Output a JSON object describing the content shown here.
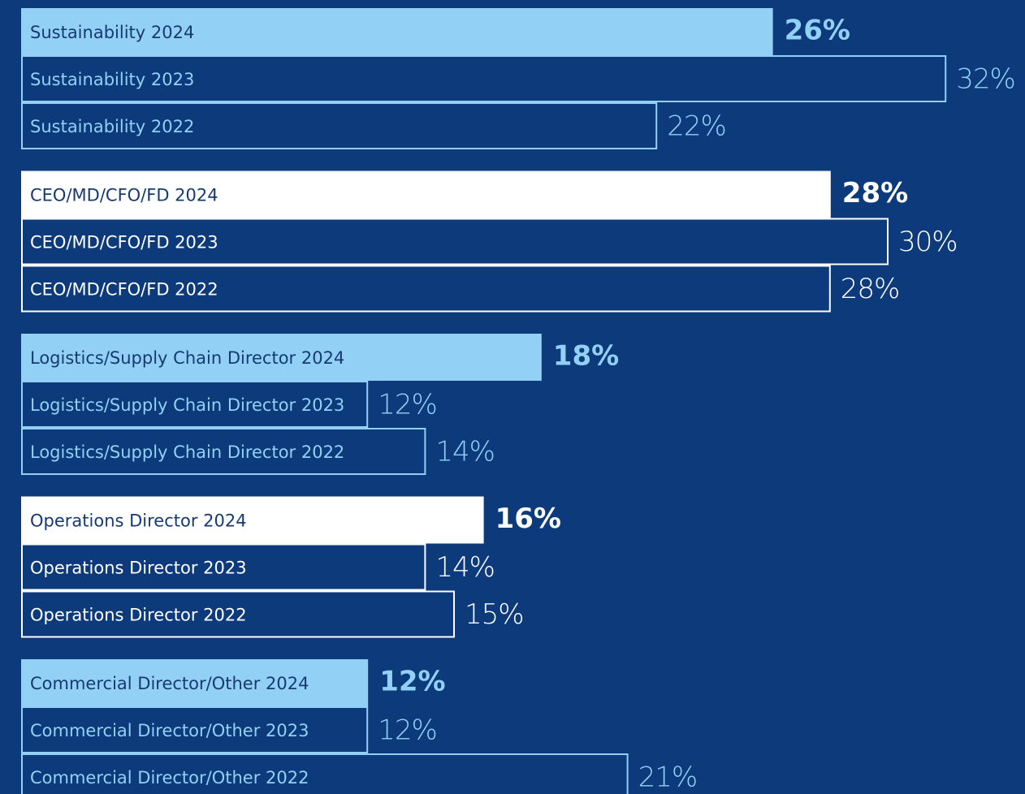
{
  "chart_data": {
    "type": "bar",
    "orientation": "horizontal",
    "groups": [
      {
        "color": "#92d1f5",
        "categories": [
          "Sustainability 2024",
          "Sustainability 2023",
          "Sustainability 2022"
        ],
        "values": [
          26,
          32,
          22
        ],
        "value_labels": [
          "26%",
          "32%",
          "22%"
        ]
      },
      {
        "color": "#ffffff",
        "categories": [
          "CEO/MD/CFO/FD 2024",
          "CEO/MD/CFO/FD 2023",
          "CEO/MD/CFO/FD 2022"
        ],
        "values": [
          28,
          30,
          28
        ],
        "value_labels": [
          "28%",
          "30%",
          "28%"
        ]
      },
      {
        "color": "#92d1f5",
        "categories": [
          "Logistics/Supply Chain Director 2024",
          "Logistics/Supply Chain Director 2023",
          "Logistics/Supply Chain Director 2022"
        ],
        "values": [
          18,
          12,
          14
        ],
        "value_labels": [
          "18%",
          "12%",
          "14%"
        ]
      },
      {
        "color": "#ffffff",
        "categories": [
          "Operations Director 2024",
          "Operations Director 2023",
          "Operations Director 2022"
        ],
        "values": [
          16,
          14,
          15
        ],
        "value_labels": [
          "16%",
          "14%",
          "15%"
        ]
      },
      {
        "color": "#92d1f5",
        "categories": [
          "Commercial Director/Other 2024",
          "Commercial Director/Other 2023",
          "Commercial Director/Other 2022"
        ],
        "values": [
          12,
          12,
          21
        ],
        "value_labels": [
          "12%",
          "12%",
          "21%"
        ]
      }
    ]
  }
}
